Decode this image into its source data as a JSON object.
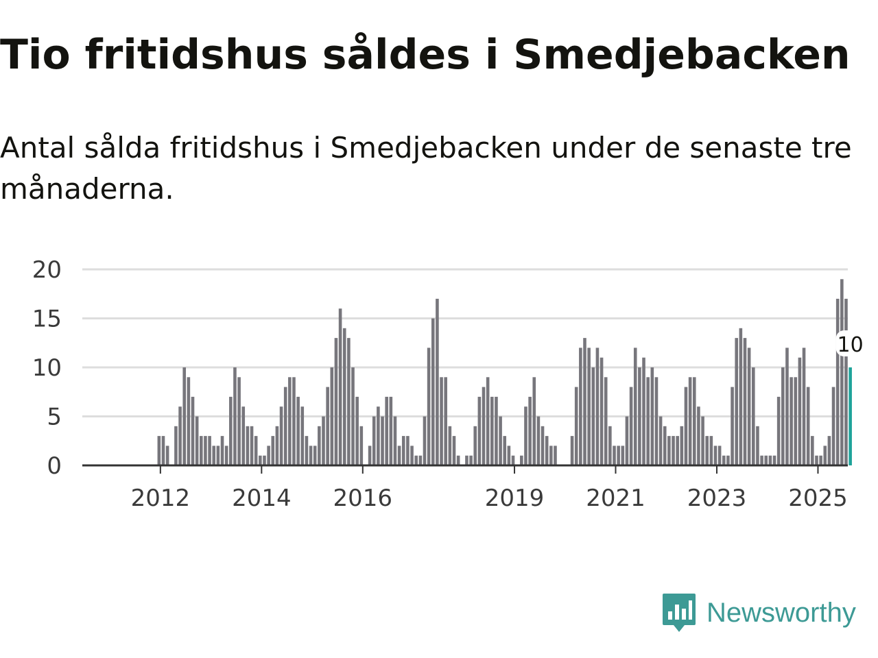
{
  "title": "Tio fritidshus såldes i Smedjebacken",
  "subtitle": "Antal sålda fritidshus i Smedjebacken under de senaste tre månaderna.",
  "brand": {
    "name": "Newsworthy",
    "logo_icon": "bar-chart-speech-bubble-icon"
  },
  "colors": {
    "bar": "#77767c",
    "highlight": "#1ea39a",
    "grid": "#dddddd",
    "axis": "#333333",
    "brand": "#3d9a95"
  },
  "chart_data": {
    "type": "bar",
    "title": "Tio fritidshus såldes i Smedjebacken",
    "subtitle": "Antal sålda fritidshus i Smedjebacken under de senaste tre månaderna.",
    "xlabel": "",
    "ylabel": "",
    "ylim": [
      0,
      20
    ],
    "yticks": [
      0,
      5,
      10,
      15,
      20
    ],
    "grid": true,
    "x_start": "2011-03",
    "x_step": "month",
    "x_tick_labels": [
      {
        "label": "2012",
        "month": "2012-01"
      },
      {
        "label": "2014",
        "month": "2014-01"
      },
      {
        "label": "2016",
        "month": "2016-01"
      },
      {
        "label": "2019",
        "month": "2019-01"
      },
      {
        "label": "2021",
        "month": "2021-01"
      },
      {
        "label": "2023",
        "month": "2023-01"
      },
      {
        "label": "2025",
        "month": "2025-01"
      }
    ],
    "values": [
      0,
      0,
      0,
      0,
      0,
      0,
      0,
      0,
      0,
      0,
      3,
      3,
      2,
      0,
      4,
      6,
      10,
      9,
      7,
      5,
      3,
      3,
      3,
      2,
      2,
      3,
      2,
      7,
      10,
      9,
      6,
      4,
      4,
      3,
      1,
      1,
      2,
      3,
      4,
      6,
      8,
      9,
      9,
      7,
      6,
      3,
      2,
      2,
      4,
      5,
      8,
      10,
      13,
      16,
      14,
      13,
      10,
      7,
      4,
      0,
      2,
      5,
      6,
      5,
      7,
      7,
      5,
      2,
      3,
      3,
      2,
      1,
      1,
      5,
      12,
      15,
      17,
      9,
      9,
      4,
      3,
      1,
      0,
      1,
      1,
      4,
      7,
      8,
      9,
      7,
      7,
      5,
      3,
      2,
      1,
      0,
      1,
      6,
      7,
      9,
      5,
      4,
      3,
      2,
      2,
      0,
      0,
      0,
      3,
      8,
      12,
      13,
      12,
      10,
      12,
      11,
      9,
      4,
      2,
      2,
      2,
      5,
      8,
      12,
      10,
      11,
      9,
      10,
      9,
      5,
      4,
      3,
      3,
      3,
      4,
      8,
      9,
      9,
      6,
      5,
      3,
      3,
      2,
      2,
      1,
      1,
      8,
      13,
      14,
      13,
      12,
      10,
      4,
      1,
      1,
      1,
      1,
      7,
      10,
      12,
      9,
      9,
      11,
      12,
      8,
      3,
      1,
      1,
      2,
      3,
      8,
      17,
      19,
      17,
      10
    ],
    "highlight_last": true,
    "annotations": [
      {
        "text": "10",
        "target": "last-bar"
      }
    ]
  }
}
